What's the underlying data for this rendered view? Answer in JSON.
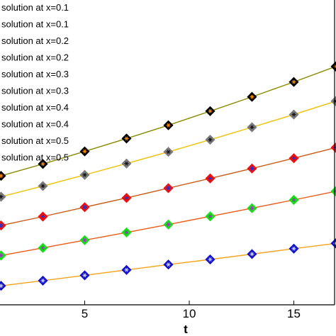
{
  "chart_data": {
    "type": "line",
    "title": "",
    "xlabel": "t",
    "ylabel": "",
    "xlim": [
      0,
      18
    ],
    "ylim": [
      0,
      1.25
    ],
    "grid": false,
    "legend_position": "top-left",
    "x_ticks": [
      5,
      10,
      15
    ],
    "x_tick_labels": [
      "5",
      "10",
      "15"
    ],
    "x": [
      1,
      3,
      5,
      7,
      9,
      11,
      13,
      15,
      17
    ],
    "legend_entries": [
      "solution at x=0.1",
      "solution at x=0.1",
      "solution at x=0.2",
      "solution at x=0.2",
      "solution at x=0.3",
      "solution at x=0.3",
      "solution at x=0.4",
      "solution at x=0.4",
      "solution at x=0.5",
      "solution at x=0.5"
    ],
    "series": [
      {
        "line_color": "#f4a21a",
        "marker_color": "#1212c8",
        "star_color": "#d0d0ff",
        "values": [
          0.11,
          0.136,
          0.163,
          0.19,
          0.217,
          0.243,
          0.27,
          0.297,
          0.324
        ]
      },
      {
        "line_color": "#f05a14",
        "marker_color": "#16e016",
        "star_color": "#a030c0",
        "values": [
          0.263,
          0.301,
          0.34,
          0.379,
          0.419,
          0.46,
          0.501,
          0.543,
          0.586
        ]
      },
      {
        "line_color": "#cc5a14",
        "marker_color": "#ee0f0f",
        "star_color": "#2030d0",
        "values": [
          0.414,
          0.459,
          0.506,
          0.553,
          0.602,
          0.651,
          0.701,
          0.753,
          0.806
        ]
      },
      {
        "line_color": "#f0c000",
        "marker_color": "#7a7a7a",
        "star_color": "#111111",
        "values": [
          0.559,
          0.613,
          0.669,
          0.726,
          0.785,
          0.846,
          0.909,
          0.973,
          1.04
        ]
      },
      {
        "line_color": "#8a8a00",
        "marker_color": "#000000",
        "star_color": "#ff8c00",
        "values": [
          0.664,
          0.724,
          0.787,
          0.852,
          0.919,
          0.99,
          1.062,
          1.137,
          1.215
        ]
      }
    ]
  }
}
